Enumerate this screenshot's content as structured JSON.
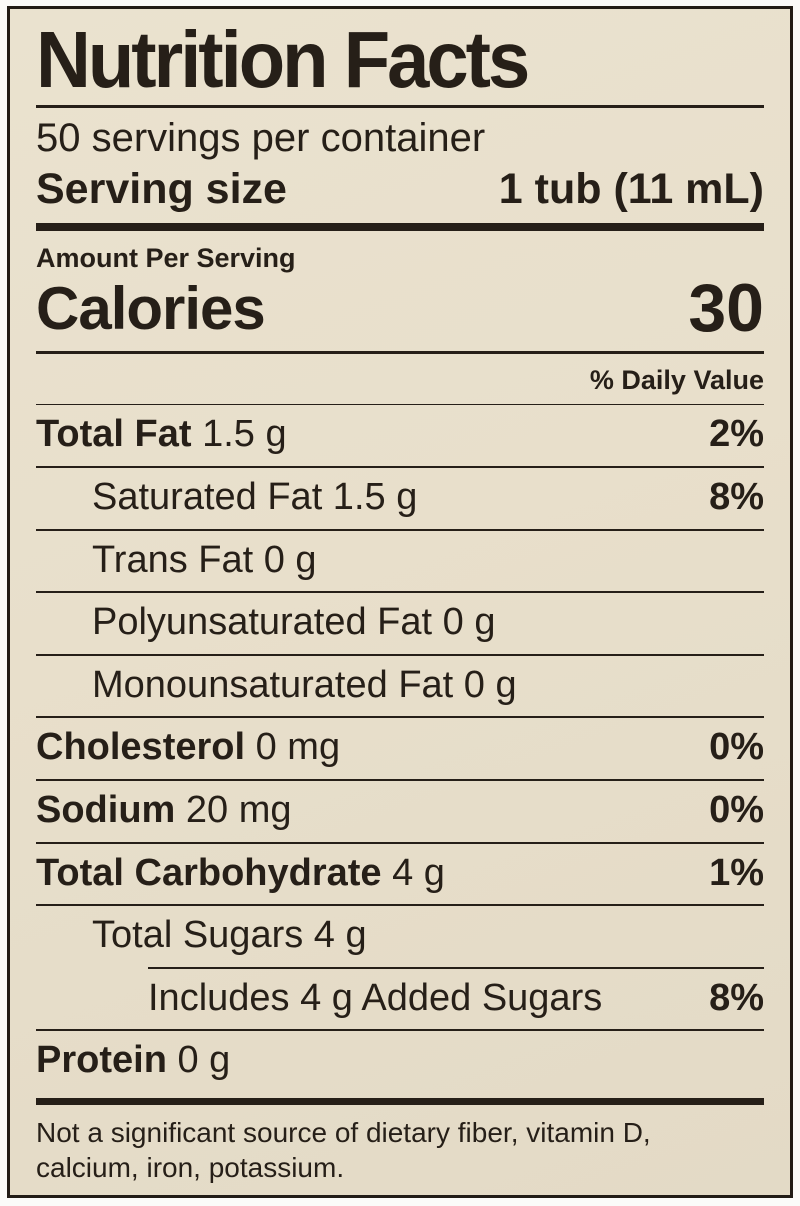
{
  "label": {
    "title": "Nutrition Facts",
    "servings_per_container": "50 servings per container",
    "serving_size_label": "Serving size",
    "serving_size_value": "1 tub (11 mL)",
    "amount_per_serving": "Amount Per Serving",
    "calories_label": "Calories",
    "calories_value": "30",
    "daily_value_header": "% Daily Value",
    "rows": [
      {
        "name": "Total Fat",
        "value": "1.5 g",
        "dv": "2%",
        "bold": true,
        "indent": 0,
        "rule_indent": false
      },
      {
        "name": "Saturated Fat",
        "value": "1.5 g",
        "dv": "8%",
        "bold": false,
        "indent": 1,
        "rule_indent": false
      },
      {
        "name": "Trans Fat",
        "value": "0 g",
        "dv": "",
        "bold": false,
        "indent": 1,
        "rule_indent": false
      },
      {
        "name": "Polyunsaturated Fat",
        "value": "0 g",
        "dv": "",
        "bold": false,
        "indent": 1,
        "rule_indent": false
      },
      {
        "name": "Monounsaturated Fat",
        "value": "0 g",
        "dv": "",
        "bold": false,
        "indent": 1,
        "rule_indent": false
      },
      {
        "name": "Cholesterol",
        "value": "0 mg",
        "dv": "0%",
        "bold": true,
        "indent": 0,
        "rule_indent": false
      },
      {
        "name": "Sodium",
        "value": "20 mg",
        "dv": "0%",
        "bold": true,
        "indent": 0,
        "rule_indent": false
      },
      {
        "name": "Total Carbohydrate",
        "value": "4 g",
        "dv": "1%",
        "bold": true,
        "indent": 0,
        "rule_indent": false
      },
      {
        "name": "Total Sugars",
        "value": "4 g",
        "dv": "",
        "bold": false,
        "indent": 1,
        "rule_indent": false
      },
      {
        "name": "Includes 4 g Added Sugars",
        "value": "",
        "dv": "8%",
        "bold": false,
        "indent": 2,
        "rule_indent": true
      },
      {
        "name": "Protein",
        "value": "0 g",
        "dv": "",
        "bold": true,
        "indent": 0,
        "rule_indent": false
      }
    ],
    "footnote": "Not a significant source of dietary fiber, vitamin D, calcium, iron, potassium.",
    "colors": {
      "background": "#e8dfcb",
      "text": "#261f18",
      "page": "#fbfbf9"
    }
  }
}
